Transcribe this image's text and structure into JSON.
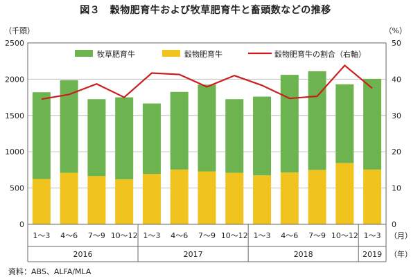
{
  "title": "図３　穀物肥育牛および牧草肥育牛と畜頭数などの推移",
  "source": "資料：ABS、ALFA/MLA",
  "chart_data": {
    "type": "bar",
    "stacked": true,
    "left_unit": "（千頭）",
    "right_unit": "（%）",
    "month_unit": "（月）",
    "year_unit": "（年）",
    "categories": [
      "1～3",
      "4～6",
      "7～9",
      "10～12",
      "1～3",
      "4～6",
      "7～9",
      "10～12",
      "1～3",
      "4～6",
      "7～9",
      "10～12",
      "1～3"
    ],
    "years": [
      {
        "label": "2016",
        "span": 4
      },
      {
        "label": "2017",
        "span": 4
      },
      {
        "label": "2018",
        "span": 4
      },
      {
        "label": "2019",
        "span": 1
      }
    ],
    "ylim": [
      0,
      2500
    ],
    "yticks": [
      0,
      500,
      1000,
      1500,
      2000,
      2500
    ],
    "y2lim": [
      0,
      50
    ],
    "y2ticks": [
      0,
      10,
      20,
      30,
      40,
      50
    ],
    "series": [
      {
        "name": "穀物肥育牛",
        "color": "#f0c31e",
        "values": [
          625,
          710,
          665,
          620,
          695,
          755,
          730,
          710,
          675,
          715,
          750,
          845,
          755
        ]
      },
      {
        "name": "牧草肥育牛",
        "color": "#6db34f",
        "values": [
          1195,
          1275,
          1060,
          1130,
          970,
          1070,
          1195,
          1015,
          1085,
          1345,
          1360,
          1085,
          1250
        ]
      },
      {
        "name": "穀物肥育牛の割合（右軸）",
        "color": "#c8201e",
        "type": "line",
        "axis": "right",
        "values": [
          34.5,
          35.8,
          38.7,
          35.0,
          41.7,
          41.3,
          37.9,
          41.0,
          38.3,
          34.7,
          35.3,
          43.8,
          37.5
        ]
      }
    ],
    "legend_position": "top"
  }
}
